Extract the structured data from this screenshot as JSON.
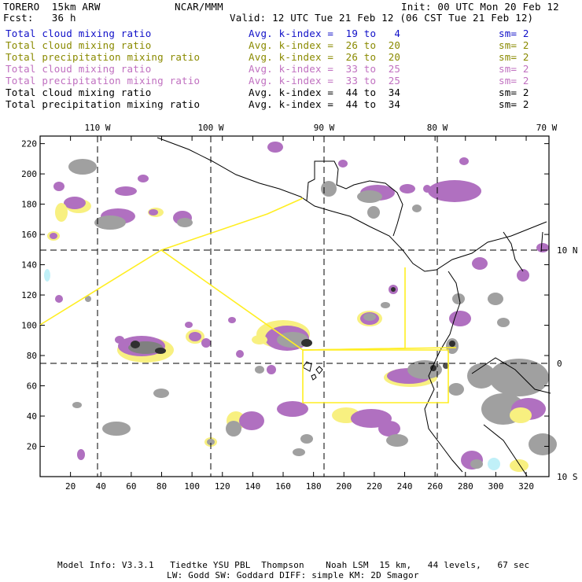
{
  "header": {
    "model": "TORERO  15km ARW",
    "center": "NCAR/MMM",
    "init": "Init: 00 UTC Mon 20 Feb 12",
    "fcst": "Fcst:   36 h",
    "valid": "Valid: 12 UTC Tue 21 Feb 12 (06 CST Tue 21 Feb 12)"
  },
  "legend": [
    {
      "field": "Total cloud mixing ratio",
      "kindex": "Avg. k-index =  19 to   4",
      "sm": "sm= 2",
      "color": "#1010c8"
    },
    {
      "field": "Total cloud mixing ratio",
      "kindex": "Avg. k-index =  26 to  20",
      "sm": "sm= 2",
      "color": "#8a8a00"
    },
    {
      "field": "Total precipitation mixing ratio",
      "kindex": "Avg. k-index =  26 to  20",
      "sm": "sm= 2",
      "color": "#8a8a00"
    },
    {
      "field": "Total cloud mixing ratio",
      "kindex": "Avg. k-index =  33 to  25",
      "sm": "sm= 2",
      "color": "#c070c0"
    },
    {
      "field": "Total precipitation mixing ratio",
      "kindex": "Avg. k-index =  33 to  25",
      "sm": "sm= 2",
      "color": "#c070c0"
    },
    {
      "field": "Total cloud mixing ratio",
      "kindex": "Avg. k-index =  44 to  34",
      "sm": "sm= 2",
      "color": "#000000"
    },
    {
      "field": "Total precipitation mixing ratio",
      "kindex": "Avg. k-index =  44 to  34",
      "sm": "sm= 2",
      "color": "#000000"
    }
  ],
  "axes": {
    "lon_labels": [
      "110 W",
      "100 W",
      "90 W",
      "80 W",
      "70 W"
    ],
    "lat_labels": [
      "10 N",
      "0",
      "10 S"
    ],
    "x_ticks": [
      "20",
      "40",
      "60",
      "80",
      "100",
      "120",
      "140",
      "160",
      "180",
      "200",
      "220",
      "240",
      "260",
      "280",
      "300",
      "320"
    ],
    "y_ticks": [
      "20",
      "40",
      "60",
      "80",
      "100",
      "120",
      "140",
      "160",
      "180",
      "200",
      "220"
    ]
  },
  "footer": {
    "line1": "Model Info: V3.3.1   Tiedtke YSU PBL  Thompson    Noah LSM  15 km,   44 levels,   67 sec",
    "line2": "LW: Godd SW: Goddard DIFF: simple KM: 2D Smagor"
  },
  "colors": {
    "gray": "#a0a0a0",
    "dark": "#404040",
    "yellow": "#f8f080",
    "magenta": "#b070c0",
    "cyan": "#c0f0f8",
    "track": "#ffee22"
  }
}
